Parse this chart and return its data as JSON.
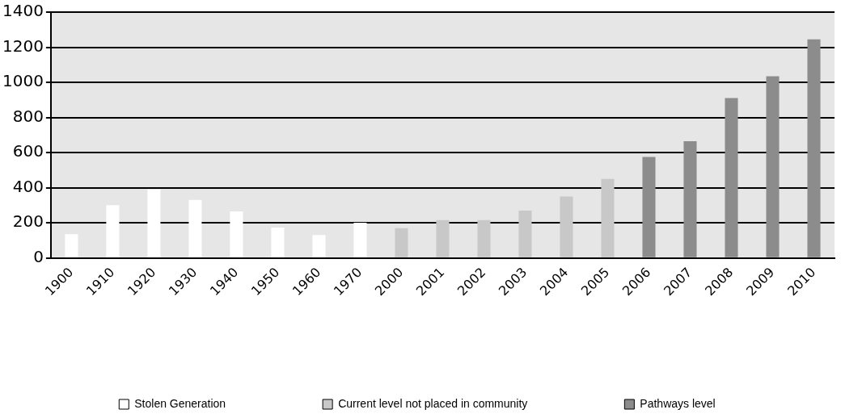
{
  "chart_data": {
    "type": "bar",
    "categories": [
      "1900",
      "1910",
      "1920",
      "1930",
      "1940",
      "1950",
      "1960",
      "1970",
      "2000",
      "2001",
      "2002",
      "2003",
      "2004",
      "2005",
      "2006",
      "2007",
      "2008",
      "2009",
      "2010"
    ],
    "series": [
      {
        "name": "Stolen Generation",
        "color": "#ffffff",
        "values": [
          135,
          300,
          390,
          330,
          265,
          173,
          130,
          200,
          null,
          null,
          null,
          null,
          null,
          null,
          null,
          null,
          null,
          null,
          null
        ]
      },
      {
        "name": "Current level not placed in community",
        "color": "#c8c8c8",
        "values": [
          null,
          null,
          null,
          null,
          null,
          null,
          null,
          null,
          170,
          215,
          215,
          270,
          350,
          450,
          null,
          null,
          null,
          null,
          null
        ]
      },
      {
        "name": "Pathways level",
        "color": "#8c8c8c",
        "values": [
          null,
          null,
          null,
          null,
          null,
          null,
          null,
          null,
          null,
          null,
          null,
          null,
          null,
          null,
          575,
          665,
          910,
          1035,
          1245
        ]
      }
    ],
    "ylim": [
      0,
      1400
    ],
    "yticks": [
      0,
      200,
      400,
      600,
      800,
      1000,
      1200,
      1400
    ],
    "grid": "y",
    "legend": "bottom"
  }
}
